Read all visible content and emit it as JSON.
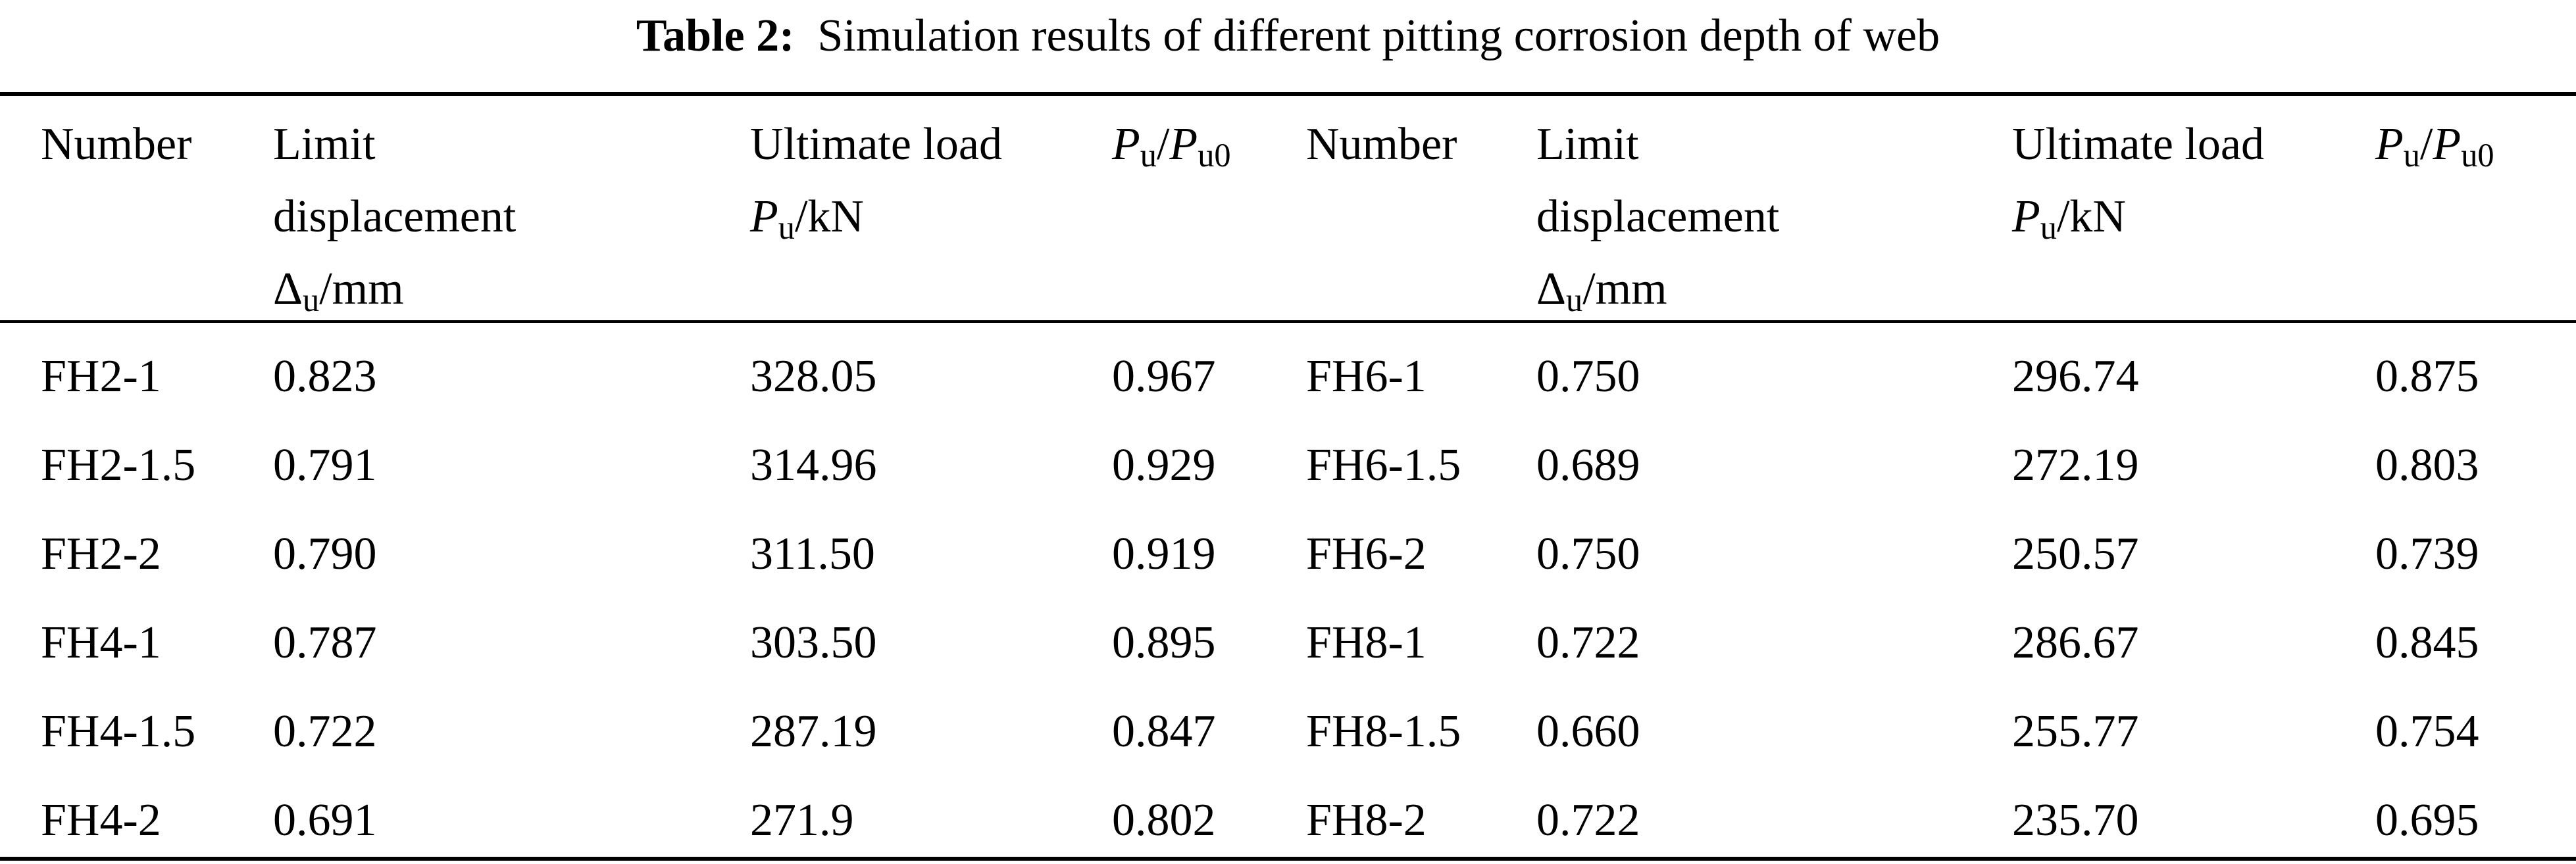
{
  "caption": {
    "label": "Table 2:",
    "text": "Simulation results of different pitting corrosion depth of web"
  },
  "headers": {
    "number": "Number",
    "limit_line1": "Limit",
    "limit_line2": "displacement",
    "limit_delta": "Δ",
    "limit_sub": "u",
    "limit_unit": "/mm",
    "ultimate_line1": "Ultimate load",
    "ultimate_P": "P",
    "ultimate_sub": "u",
    "ultimate_unit": "/kN",
    "ratio_P1": "P",
    "ratio_sub1": "u",
    "ratio_slash": "/",
    "ratio_P2": "P",
    "ratio_sub2": "u0"
  },
  "rows": [
    [
      "FH2-1",
      "0.823",
      "328.05",
      "0.967",
      "FH6-1",
      "0.750",
      "296.74",
      "0.875"
    ],
    [
      "FH2-1.5",
      "0.791",
      "314.96",
      "0.929",
      "FH6-1.5",
      "0.689",
      "272.19",
      "0.803"
    ],
    [
      "FH2-2",
      "0.790",
      "311.50",
      "0.919",
      "FH6-2",
      "0.750",
      "250.57",
      "0.739"
    ],
    [
      "FH4-1",
      "0.787",
      "303.50",
      "0.895",
      "FH8-1",
      "0.722",
      "286.67",
      "0.845"
    ],
    [
      "FH4-1.5",
      "0.722",
      "287.19",
      "0.847",
      "FH8-1.5",
      "0.660",
      "255.77",
      "0.754"
    ],
    [
      "FH4-2",
      "0.691",
      "271.9",
      "0.802",
      "FH8-2",
      "0.722",
      "235.70",
      "0.695"
    ]
  ]
}
